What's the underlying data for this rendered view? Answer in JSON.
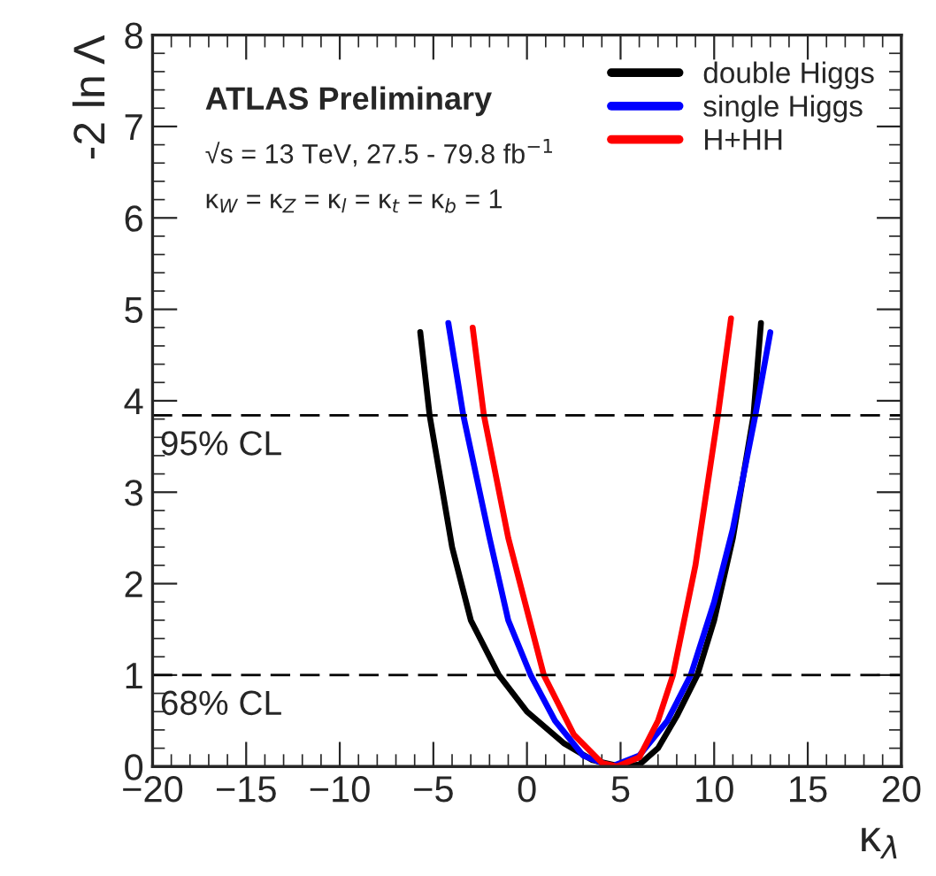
{
  "chart_data": {
    "type": "line",
    "xlabel": "κ$_{λ}$",
    "ylabel": "-2 ln Λ",
    "annotations": [
      "ATLAS Preliminary",
      "√s = 13 TeV, 27.5 - 79.8 fb$^{−1}$",
      "κ$_{W}$ = κ$_{Z}$ = κ$_{l}$ = κ$_{t}$ = κ$_{b}$ = 1"
    ],
    "series": [
      {
        "name": "double Higgs",
        "color": "#000000",
        "x": [
          -5.7,
          -5.2,
          -4,
          -3,
          -1.5,
          0,
          2,
          3.5,
          5,
          6,
          7,
          8,
          9.1,
          10,
          11,
          12.1,
          12.5
        ],
        "values": [
          4.75,
          3.84,
          2.4,
          1.6,
          1,
          0.6,
          0.25,
          0.07,
          0,
          0.02,
          0.2,
          0.55,
          1,
          1.6,
          2.5,
          3.84,
          4.85
        ]
      },
      {
        "name": "single Higgs",
        "color": "#0000ff",
        "x": [
          -4.2,
          -3.4,
          -2,
          -1,
          0.2,
          1.5,
          3,
          4.5,
          6,
          7.5,
          8.75,
          10,
          11,
          12.2,
          13
        ],
        "values": [
          4.85,
          3.84,
          2.5,
          1.6,
          1,
          0.5,
          0.12,
          0,
          0.12,
          0.5,
          1,
          1.8,
          2.6,
          3.84,
          4.75
        ]
      },
      {
        "name": "H+HH",
        "color": "#ff0000",
        "x": [
          -2.9,
          -2.3,
          -1,
          0.9,
          2.5,
          4,
          4.8,
          6,
          7,
          7.8,
          9,
          10.2,
          10.9
        ],
        "values": [
          4.8,
          3.84,
          2.5,
          1,
          0.35,
          0.04,
          0,
          0.1,
          0.5,
          1,
          2.2,
          3.84,
          4.9
        ]
      }
    ],
    "xlim": [
      -20,
      20
    ],
    "xticks": [
      {
        "value": -20,
        "label": "−20"
      },
      {
        "value": -15,
        "label": "−15"
      },
      {
        "value": -10,
        "label": "−10"
      },
      {
        "value": -5,
        "label": "−5"
      },
      0,
      5,
      10,
      15,
      20
    ],
    "ylim": [
      0,
      8
    ],
    "yticks": [
      0,
      1,
      2,
      3,
      4,
      5,
      6,
      7,
      8
    ],
    "ref_lines": [
      {
        "axis": "y",
        "value": 3.84,
        "label": "95% CL",
        "color": "#000000",
        "line_style": "dashed"
      },
      {
        "axis": "y",
        "value": 1,
        "label": "68% CL",
        "color": "#000000",
        "line_style": "dashed"
      }
    ],
    "legend": "top right",
    "grid": false,
    "line_style": "solid",
    "marker": "none"
  }
}
